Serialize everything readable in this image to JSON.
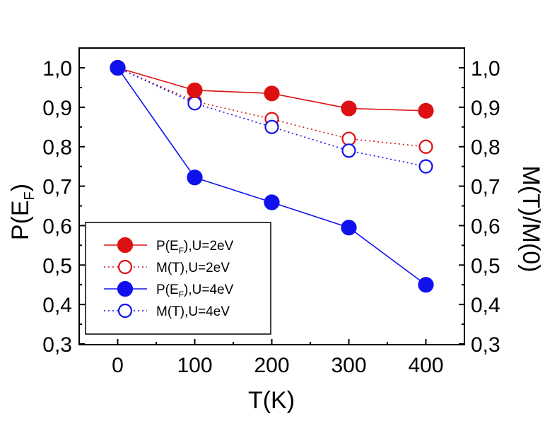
{
  "chart_data": {
    "type": "line",
    "x": [
      0,
      100,
      200,
      300,
      400
    ],
    "xlim": [
      -50,
      450
    ],
    "ylim": [
      0.3,
      1.05
    ],
    "x_ticks": [
      "0",
      "100",
      "200",
      "300",
      "400"
    ],
    "y_ticks": [
      "0,3",
      "0,4",
      "0,5",
      "0,6",
      "0,7",
      "0,8",
      "0,9",
      "1,0"
    ],
    "xlabel": "T(K)",
    "ylabel_left": {
      "main": "P(E",
      "sub": "F",
      "tail": ")"
    },
    "ylabel_right": "M(T)/M(0)",
    "legend_position": "lower-left",
    "series": [
      {
        "name": "P(E_F),U=2eV",
        "legend_main": "P(E",
        "legend_sub": "F",
        "legend_tail": "),U=2eV",
        "color": "#dd1111",
        "marker": "filled",
        "line": "solid",
        "values": [
          1.0,
          0.943,
          0.935,
          0.897,
          0.891
        ]
      },
      {
        "name": "M(T),U=2eV",
        "legend_main": "M(T),U=2eV",
        "legend_sub": "",
        "legend_tail": "",
        "color": "#dd1111",
        "marker": "open",
        "line": "dotted",
        "values": [
          1.0,
          0.915,
          0.87,
          0.82,
          0.8
        ]
      },
      {
        "name": "P(E_F),U=4eV",
        "legend_main": "P(E",
        "legend_sub": "F",
        "legend_tail": "),U=4eV",
        "color": "#1111ee",
        "marker": "filled",
        "line": "solid",
        "values": [
          1.0,
          0.722,
          0.659,
          0.595,
          0.45
        ]
      },
      {
        "name": "M(T),U=4eV",
        "legend_main": "M(T),U=4eV",
        "legend_sub": "",
        "legend_tail": "",
        "color": "#1111ee",
        "marker": "open",
        "line": "dotted",
        "values": [
          1.0,
          0.91,
          0.85,
          0.79,
          0.75
        ]
      }
    ]
  }
}
